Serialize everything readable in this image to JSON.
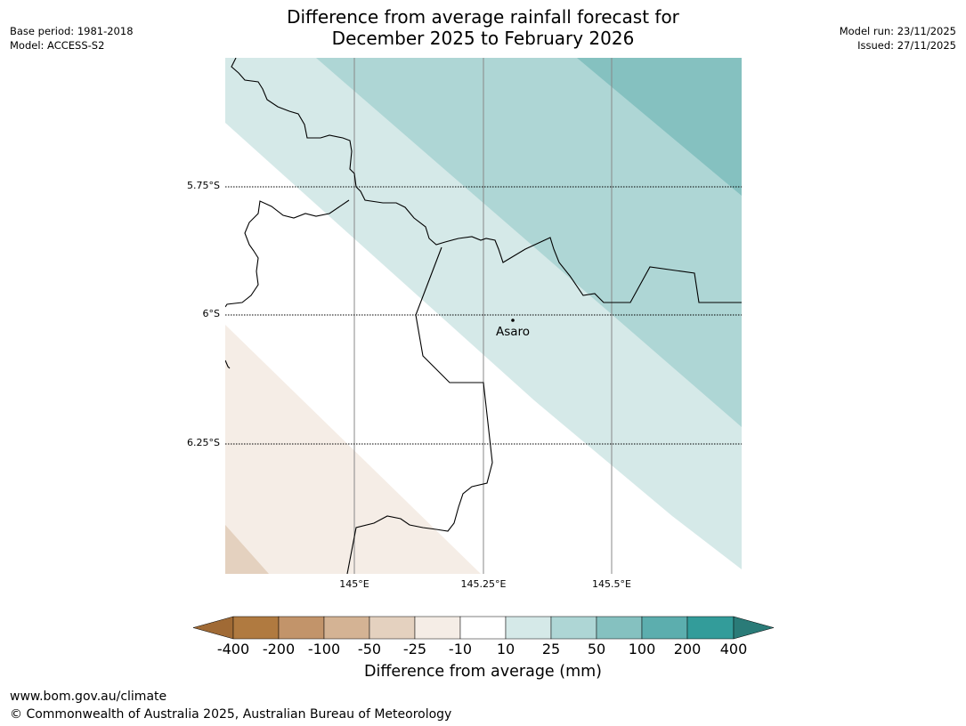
{
  "header": {
    "base_period": "Base period: 1981-2018",
    "model": "Model: ACCESS-S2",
    "title_line1": "Difference from average rainfall forecast for",
    "title_line2": "December 2025 to February 2026",
    "model_run": "Model run: 23/11/2025",
    "issued": "Issued: 27/11/2025"
  },
  "map": {
    "lat_labels": [
      "5.75°S",
      "6°S",
      "6.25°S"
    ],
    "lon_labels": [
      "145°E",
      "145.25°E",
      "145.5°E"
    ],
    "place_label": "Asaro"
  },
  "colors": {
    "c_m400": "#a06a35",
    "c_m200": "#b07a40",
    "c_m100": "#c2946a",
    "c_m50": "#d4b394",
    "c_m25": "#e4d1bf",
    "c_m10": "#f5ede6",
    "c_0": "#ffffff",
    "c_10": "#d5e9e8",
    "c_25": "#aed6d5",
    "c_50": "#85c1c0",
    "c_100": "#5caeae",
    "c_200": "#339c9a",
    "c_400": "#2a7b78"
  },
  "colorbar": {
    "ticks": [
      "-400",
      "-200",
      "-100",
      "-50",
      "-25",
      "-10",
      "10",
      "25",
      "50",
      "100",
      "200",
      "400"
    ],
    "label": "Difference from average (mm)"
  },
  "footer": {
    "url": "www.bom.gov.au/climate",
    "copyright": "© Commonwealth of Australia 2025, Australian Bureau of Meteorology"
  }
}
